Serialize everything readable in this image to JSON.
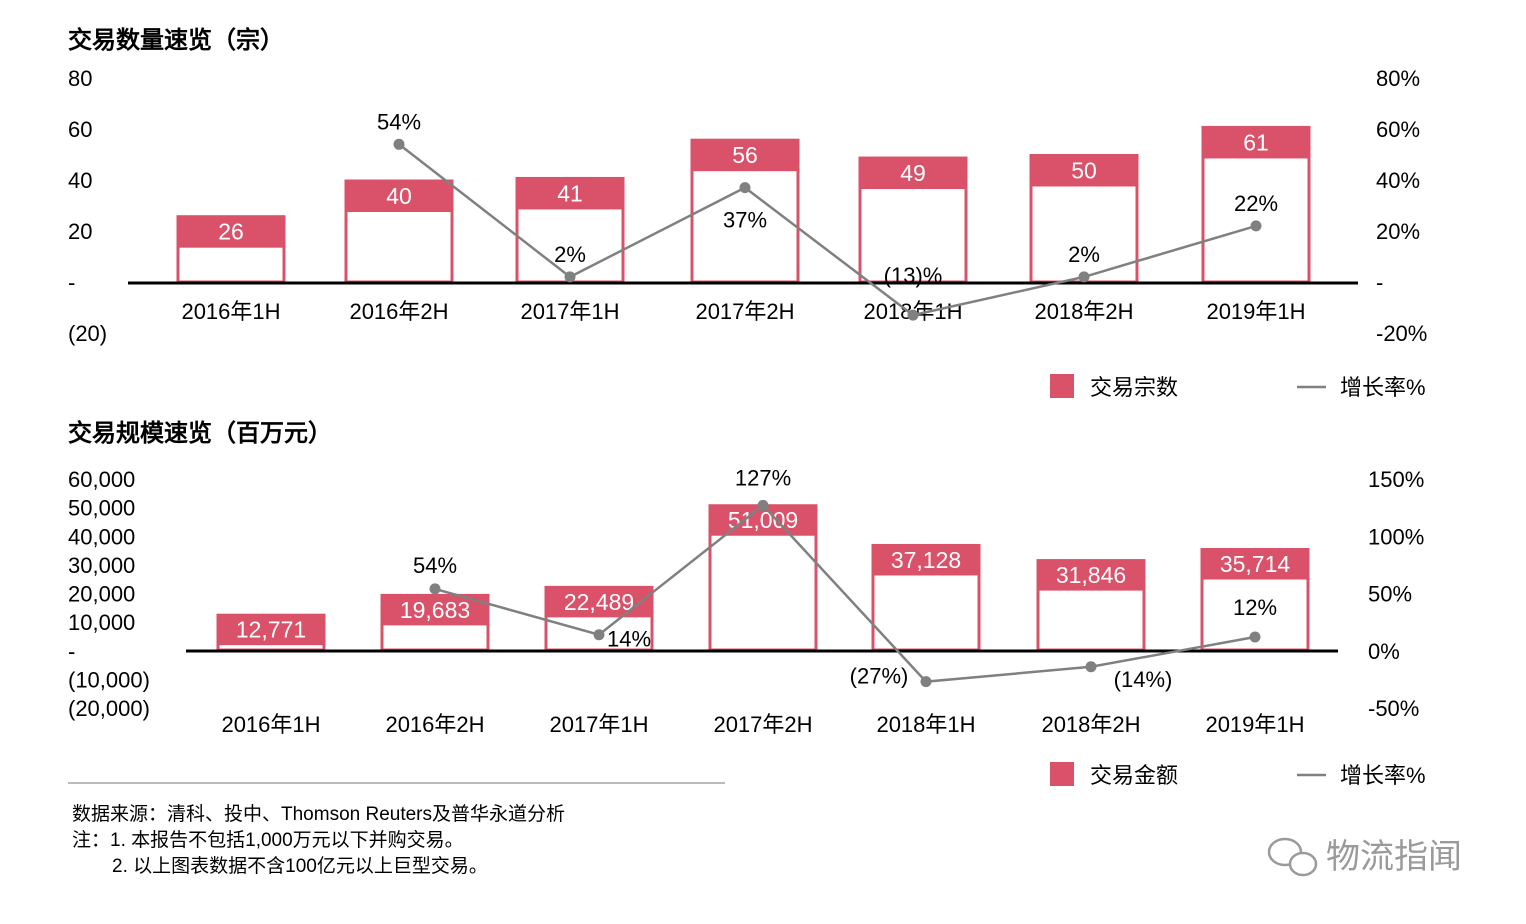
{
  "colors": {
    "bar": "#d9526a",
    "line": "#808080",
    "axis": "#000000"
  },
  "chart_data": [
    {
      "type": "bar+line",
      "title": "交易数量速览（宗）",
      "categories": [
        "2016年1H",
        "2016年2H",
        "2017年1H",
        "2017年2H",
        "2018年1H",
        "2018年2H",
        "2019年1H"
      ],
      "series": [
        {
          "name": "交易宗数",
          "type": "bar",
          "values": [
            26,
            40,
            41,
            56,
            49,
            50,
            61
          ],
          "labels": [
            "26",
            "40",
            "41",
            "56",
            "49",
            "50",
            "61"
          ]
        },
        {
          "name": "增长率%",
          "type": "line",
          "axis": "right",
          "values": [
            null,
            54,
            2,
            37,
            -13,
            2,
            22
          ],
          "labels": [
            "",
            "54%",
            "2%",
            "37%",
            "(13)%",
            "2%",
            "22%"
          ]
        }
      ],
      "yleft": {
        "range": [
          -20,
          80
        ],
        "ticks": [
          "80",
          "60",
          "40",
          "20",
          "-",
          "(20)"
        ]
      },
      "yright": {
        "range": [
          -20,
          80
        ],
        "ticks": [
          "80%",
          "60%",
          "40%",
          "20%",
          "-",
          "-20%"
        ]
      },
      "legend": "bottom-right"
    },
    {
      "type": "bar+line",
      "title": "交易规模速览（百万元）",
      "categories": [
        "2016年1H",
        "2016年2H",
        "2017年1H",
        "2017年2H",
        "2018年1H",
        "2018年2H",
        "2019年1H"
      ],
      "series": [
        {
          "name": "交易金额",
          "type": "bar",
          "values": [
            12771,
            19683,
            22489,
            51009,
            37128,
            31846,
            35714
          ],
          "labels": [
            "12,771",
            "19,683",
            "22,489",
            "51,009",
            "37,128",
            "31,846",
            "35,714"
          ]
        },
        {
          "name": "增长率%",
          "type": "line",
          "axis": "right",
          "values": [
            null,
            54,
            14,
            127,
            -27,
            -14,
            12
          ],
          "labels": [
            "",
            "54%",
            "14%",
            "127%",
            "(27%)",
            "(14%)",
            "12%"
          ]
        }
      ],
      "yleft": {
        "range": [
          -20000,
          60000
        ],
        "ticks": [
          "60,000",
          "50,000",
          "40,000",
          "30,000",
          "20,000",
          "10,000",
          "-",
          "(10,000)",
          "(20,000)"
        ]
      },
      "yright": {
        "range": [
          -50,
          150
        ],
        "ticks": [
          "150%",
          "100%",
          "50%",
          "0%",
          "-50%"
        ]
      },
      "legend": "bottom-right"
    }
  ],
  "footnotes": [
    "数据来源：清科、投中、Thomson Reuters及普华永道分析",
    "注：1. 本报告不包括1,000万元以下并购交易。",
    "2. 以上图表数据不含100亿元以上巨型交易。"
  ],
  "watermark": "物流指闻"
}
